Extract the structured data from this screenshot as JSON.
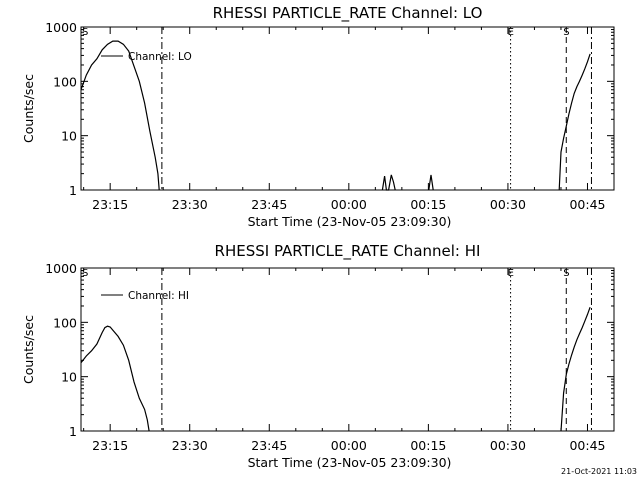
{
  "chart_data": [
    {
      "type": "line",
      "title": "RHESSI PARTICLE_RATE Channel: LO",
      "xlabel": "Start Time (23-Nov-05 23:09:30)",
      "ylabel": "Counts/sec",
      "yscale": "log",
      "ylim": [
        1,
        1000
      ],
      "xlim": [
        "23:09:30",
        "00:50:00"
      ],
      "grid": false,
      "legend": {
        "placement": "top-left",
        "label": "Channel: LO"
      },
      "xticks": [
        "23:15",
        "23:30",
        "23:45",
        "00:00",
        "00:15",
        "00:30",
        "00:45"
      ],
      "yticks": [
        "1",
        "10",
        "100",
        "1000"
      ],
      "markers": [
        {
          "label": "S",
          "time": "23:09:30",
          "style": "dash-dot"
        },
        {
          "label": "",
          "time": "23:24:45",
          "style": "dash-dot"
        },
        {
          "label": "E",
          "time": "00:30:30",
          "style": "dotted"
        },
        {
          "label": "S",
          "time": "00:41:00",
          "style": "dashed"
        },
        {
          "label": "",
          "time": "00:45:45",
          "style": "dash-dot"
        }
      ],
      "series": [
        {
          "name": "Channel: LO",
          "segments": [
            {
              "x": [
                "23:09:30",
                "23:10:30",
                "23:11:30",
                "23:12:30",
                "23:13:30",
                "23:14:30",
                "23:15:30",
                "23:16:30",
                "23:17:30",
                "23:18:30",
                "23:19:30",
                "23:20:30",
                "23:21:30",
                "23:22:30",
                "23:23:30",
                "23:24:00",
                "23:24:15"
              ],
              "y": [
                70,
                130,
                200,
                260,
                380,
                480,
                550,
                550,
                480,
                360,
                190,
                100,
                40,
                12,
                4,
                2,
                1
              ]
            },
            {
              "x": [
                "00:06:20",
                "00:06:45",
                "00:07:05",
                "00:07:30",
                "00:08:00",
                "00:08:25",
                "00:08:45"
              ],
              "y": [
                1,
                1.8,
                1,
                1,
                1.9,
                1.4,
                1
              ]
            },
            {
              "x": [
                "00:15:05",
                "00:15:30",
                "00:15:55"
              ],
              "y": [
                1,
                1.9,
                1
              ]
            },
            {
              "x": [
                "00:39:40",
                "00:40:00",
                "00:40:30",
                "00:41:00",
                "00:41:30",
                "00:42:00",
                "00:42:30",
                "00:43:00",
                "00:43:30",
                "00:44:00",
                "00:44:30",
                "00:45:00",
                "00:45:30"
              ],
              "y": [
                1,
                5,
                9,
                15,
                25,
                40,
                60,
                80,
                100,
                130,
                170,
                230,
                320
              ]
            }
          ]
        }
      ]
    },
    {
      "type": "line",
      "title": "RHESSI PARTICLE_RATE Channel: HI",
      "xlabel": "Start Time (23-Nov-05 23:09:30)",
      "ylabel": "Counts/sec",
      "yscale": "log",
      "ylim": [
        1,
        1000
      ],
      "xlim": [
        "23:09:30",
        "00:50:00"
      ],
      "grid": false,
      "legend": {
        "placement": "top-left",
        "label": "Channel: HI"
      },
      "xticks": [
        "23:15",
        "23:30",
        "23:45",
        "00:00",
        "00:15",
        "00:30",
        "00:45"
      ],
      "yticks": [
        "1",
        "10",
        "100",
        "1000"
      ],
      "markers": [
        {
          "label": "S",
          "time": "23:09:30",
          "style": "dash-dot"
        },
        {
          "label": "",
          "time": "23:24:45",
          "style": "dash-dot"
        },
        {
          "label": "E",
          "time": "00:30:30",
          "style": "dotted"
        },
        {
          "label": "S",
          "time": "00:41:00",
          "style": "dashed"
        },
        {
          "label": "",
          "time": "00:45:45",
          "style": "dash-dot"
        }
      ],
      "series": [
        {
          "name": "Channel: HI",
          "segments": [
            {
              "x": [
                "23:09:30",
                "23:10:30",
                "23:11:30",
                "23:12:30",
                "23:13:30",
                "23:14:00",
                "23:14:30",
                "23:15:00",
                "23:15:30",
                "23:16:30",
                "23:17:30",
                "23:18:30",
                "23:19:30",
                "23:20:30",
                "23:21:30",
                "23:22:00",
                "23:22:20"
              ],
              "y": [
                18,
                24,
                30,
                40,
                65,
                80,
                85,
                82,
                72,
                55,
                38,
                20,
                8,
                4,
                2.5,
                1.6,
                1
              ]
            },
            {
              "x": [
                "00:40:00",
                "00:40:30",
                "00:41:00",
                "00:41:30",
                "00:42:00",
                "00:42:30",
                "00:43:00",
                "00:43:30",
                "00:44:00",
                "00:44:30",
                "00:45:00",
                "00:45:30"
              ],
              "y": [
                1,
                5,
                11,
                17,
                25,
                35,
                48,
                62,
                80,
                105,
                140,
                190
              ]
            }
          ]
        }
      ]
    }
  ],
  "footer": {
    "timestamp": "21-Oct-2021 11:03"
  }
}
